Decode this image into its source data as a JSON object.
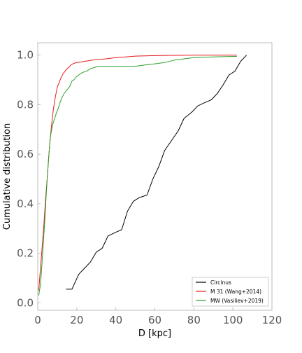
{
  "chart_data": {
    "type": "line",
    "xlabel": "D [kpc]",
    "ylabel": "Cumulative distribution",
    "xlim": [
      0,
      120
    ],
    "ylim": [
      -0.03,
      1.05
    ],
    "xticks": [
      "0",
      "20",
      "40",
      "60",
      "80",
      "100",
      "120"
    ],
    "yticks": [
      "0.0",
      "0.2",
      "0.4",
      "0.6",
      "0.8",
      "1.0"
    ],
    "grid": false,
    "legend_position": "lower-right",
    "series": [
      {
        "name": "Circinus",
        "color": "#000000",
        "x": [
          14.5,
          17.5,
          21,
          24,
          27,
          30,
          33,
          36,
          40,
          43,
          46,
          49,
          52,
          56,
          59,
          62,
          65,
          69,
          72,
          75,
          79,
          82,
          86,
          89,
          92,
          95,
          98,
          101,
          104,
          107
        ],
        "y": [
          0.055,
          0.055,
          0.115,
          0.14,
          0.165,
          0.205,
          0.22,
          0.27,
          0.285,
          0.295,
          0.37,
          0.41,
          0.425,
          0.435,
          0.5,
          0.55,
          0.615,
          0.66,
          0.695,
          0.745,
          0.77,
          0.795,
          0.81,
          0.82,
          0.845,
          0.88,
          0.92,
          0.935,
          0.975,
          1.0
        ]
      },
      {
        "name": "M 31 (Wang+2014)",
        "color": "#e41a1c",
        "x": [
          0.5,
          2,
          3,
          4,
          5,
          6,
          7,
          8,
          9,
          10,
          11,
          12,
          13,
          14,
          15,
          16,
          17,
          18,
          19,
          20,
          22,
          24,
          26,
          28,
          30,
          35,
          40,
          45,
          50,
          60,
          70,
          80,
          90,
          100,
          102
        ],
        "y": [
          0.05,
          0.2,
          0.3,
          0.42,
          0.52,
          0.63,
          0.71,
          0.78,
          0.83,
          0.87,
          0.89,
          0.91,
          0.925,
          0.935,
          0.945,
          0.952,
          0.96,
          0.965,
          0.968,
          0.97,
          0.972,
          0.975,
          0.977,
          0.98,
          0.982,
          0.985,
          0.99,
          0.993,
          0.996,
          0.998,
          0.999,
          1.0,
          1.0,
          1.0,
          1.0
        ]
      },
      {
        "name": "MW (Vasiliev+2019)",
        "color": "#2ca02c",
        "x": [
          0.5,
          1.5,
          2.5,
          3.5,
          4.5,
          5.5,
          6.5,
          7.5,
          8.5,
          9.5,
          10.5,
          11.5,
          12.5,
          13.5,
          14.5,
          15.5,
          16.5,
          17.5,
          18.5,
          19.5,
          21,
          23,
          25,
          27,
          29,
          31,
          33,
          36,
          40,
          45,
          50,
          55,
          60,
          65,
          70,
          75,
          80,
          90,
          100,
          102
        ],
        "y": [
          0.03,
          0.08,
          0.2,
          0.32,
          0.46,
          0.58,
          0.67,
          0.715,
          0.74,
          0.765,
          0.785,
          0.81,
          0.83,
          0.845,
          0.855,
          0.865,
          0.875,
          0.895,
          0.9,
          0.91,
          0.92,
          0.93,
          0.935,
          0.945,
          0.95,
          0.955,
          0.955,
          0.955,
          0.955,
          0.955,
          0.955,
          0.96,
          0.965,
          0.97,
          0.98,
          0.985,
          0.99,
          0.993,
          0.995,
          0.995
        ]
      }
    ]
  }
}
